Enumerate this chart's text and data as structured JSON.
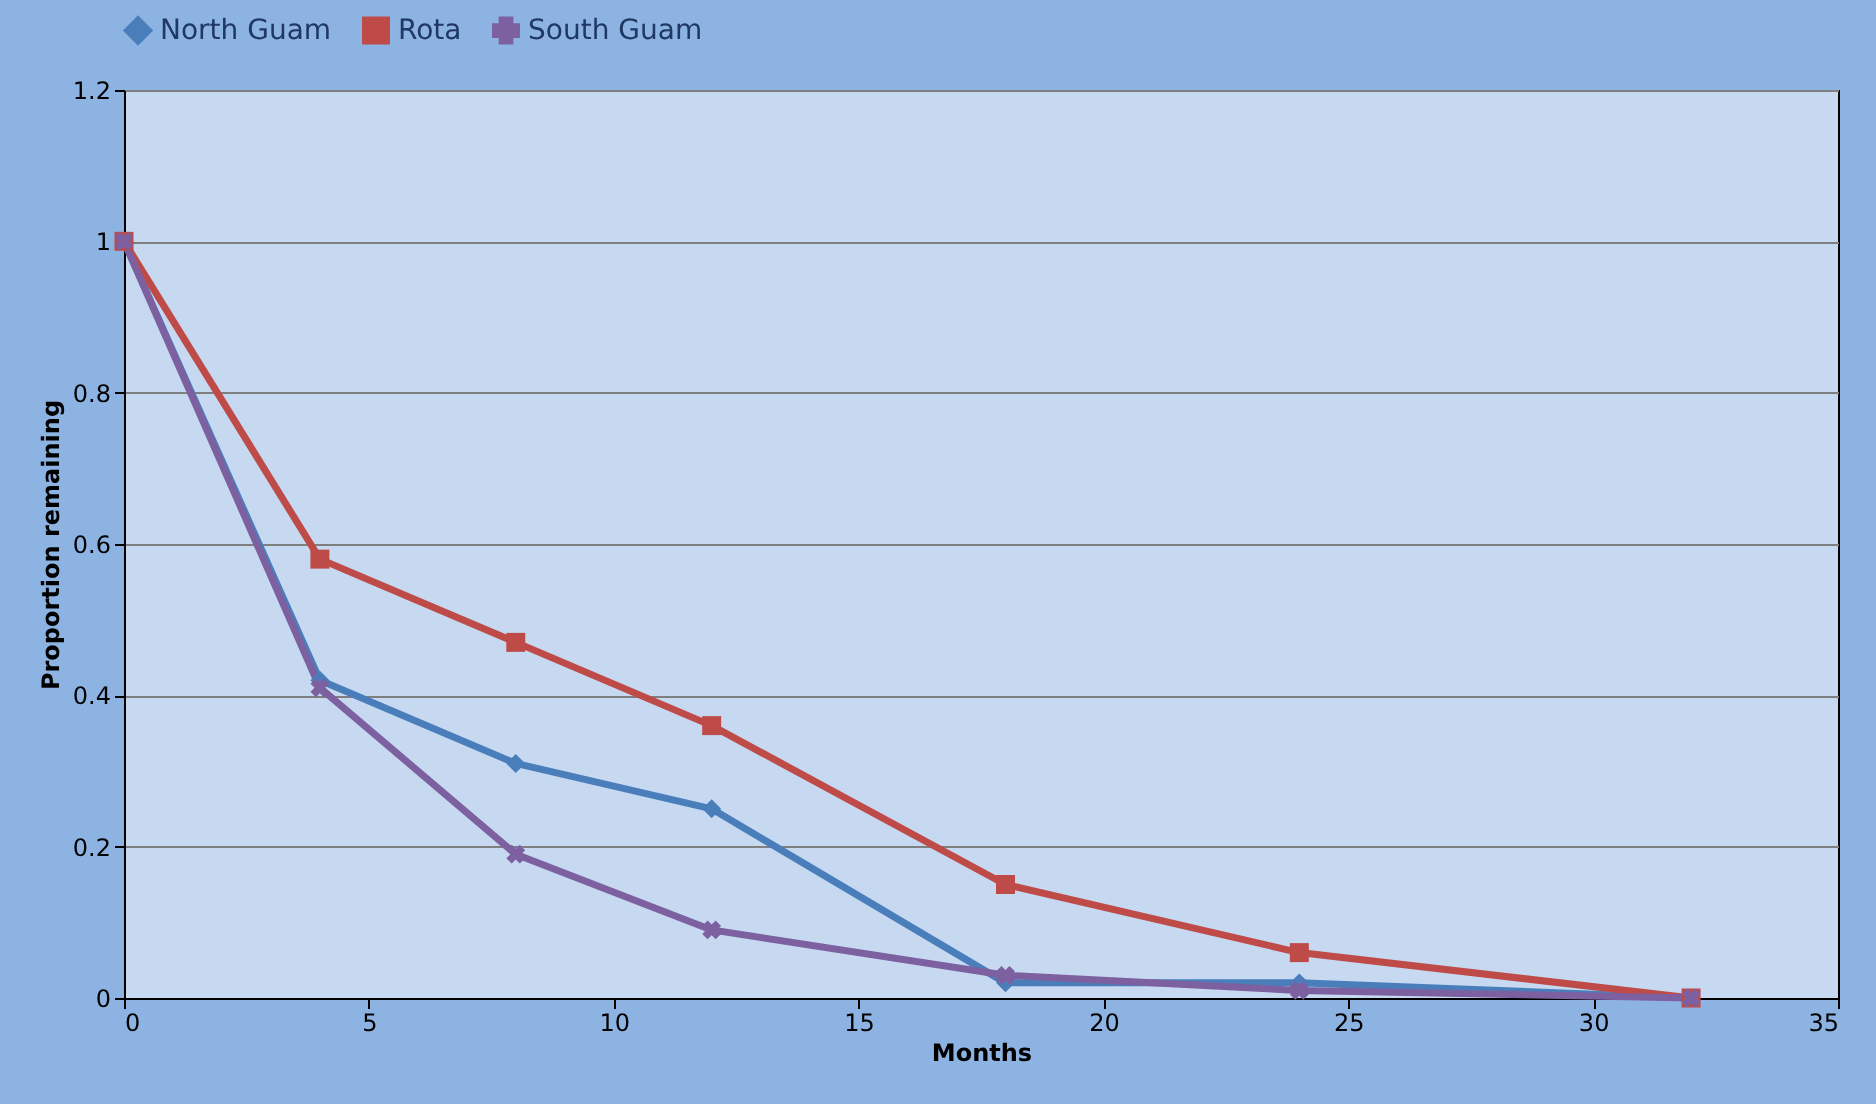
{
  "chart_data": {
    "type": "line",
    "xlabel": "Months",
    "ylabel": "Proportion remaining",
    "x": [
      0,
      4,
      8,
      12,
      18,
      24,
      32
    ],
    "series": [
      {
        "name": "North Guam",
        "color": "#4a7ebb",
        "marker": "diamond",
        "values": [
          1,
          0.42,
          0.31,
          0.25,
          0.02,
          0.02,
          0
        ]
      },
      {
        "name": "Rota",
        "color": "#be4b48",
        "marker": "square",
        "values": [
          1,
          0.58,
          0.47,
          0.36,
          0.15,
          0.06,
          0
        ]
      },
      {
        "name": "South Guam",
        "color": "#7d60a0",
        "marker": "cross",
        "values": [
          1,
          0.41,
          0.19,
          0.09,
          0.03,
          0.01,
          0
        ]
      }
    ],
    "xlim": [
      0,
      35
    ],
    "xticks": [
      0,
      5,
      10,
      15,
      20,
      25,
      30,
      35
    ],
    "ylim": [
      0,
      1.2
    ],
    "yticks": [
      0,
      0.2,
      0.4,
      0.6,
      0.8,
      1,
      1.2
    ],
    "grid": "y",
    "legend": "top"
  }
}
